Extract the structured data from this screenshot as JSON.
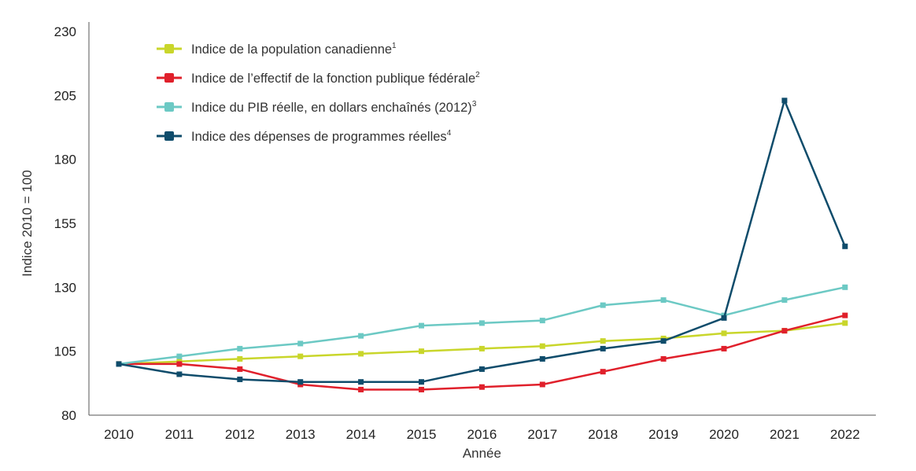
{
  "chart_data": {
    "type": "line",
    "title": "",
    "xlabel": "Année",
    "ylabel": "Indice 2010 = 100",
    "ylim": [
      80,
      230
    ],
    "yticks": [
      80,
      105,
      130,
      155,
      180,
      205,
      230
    ],
    "grid": false,
    "legend_position": "top-left",
    "x": [
      "2010",
      "2011",
      "2012",
      "2013",
      "2014",
      "2015",
      "2016",
      "2017",
      "2018",
      "2019",
      "2020",
      "2021",
      "2022"
    ],
    "series": [
      {
        "name": "Indice de la population canadienne",
        "note": "1",
        "color": "#c9d62b",
        "values": [
          100,
          101,
          102,
          103,
          104,
          105,
          106,
          107,
          109,
          110,
          112,
          113,
          116
        ]
      },
      {
        "name": "Indice de l’effectif de la fonction publique fédérale",
        "note": "2",
        "color": "#e0202b",
        "values": [
          100,
          100,
          98,
          92,
          90,
          90,
          91,
          92,
          97,
          102,
          106,
          113,
          119
        ]
      },
      {
        "name": "Indice du PIB réelle, en dollars enchaînés (2012)",
        "note": "3",
        "color": "#6cc9c4",
        "values": [
          100,
          103,
          106,
          108,
          111,
          115,
          116,
          117,
          123,
          125,
          119,
          125,
          130
        ]
      },
      {
        "name": "Indice des dépenses de programmes réelles",
        "note": "4",
        "color": "#0f4c6b",
        "values": [
          100,
          96,
          94,
          93,
          93,
          93,
          98,
          102,
          106,
          109,
          118,
          203,
          146
        ]
      }
    ]
  }
}
